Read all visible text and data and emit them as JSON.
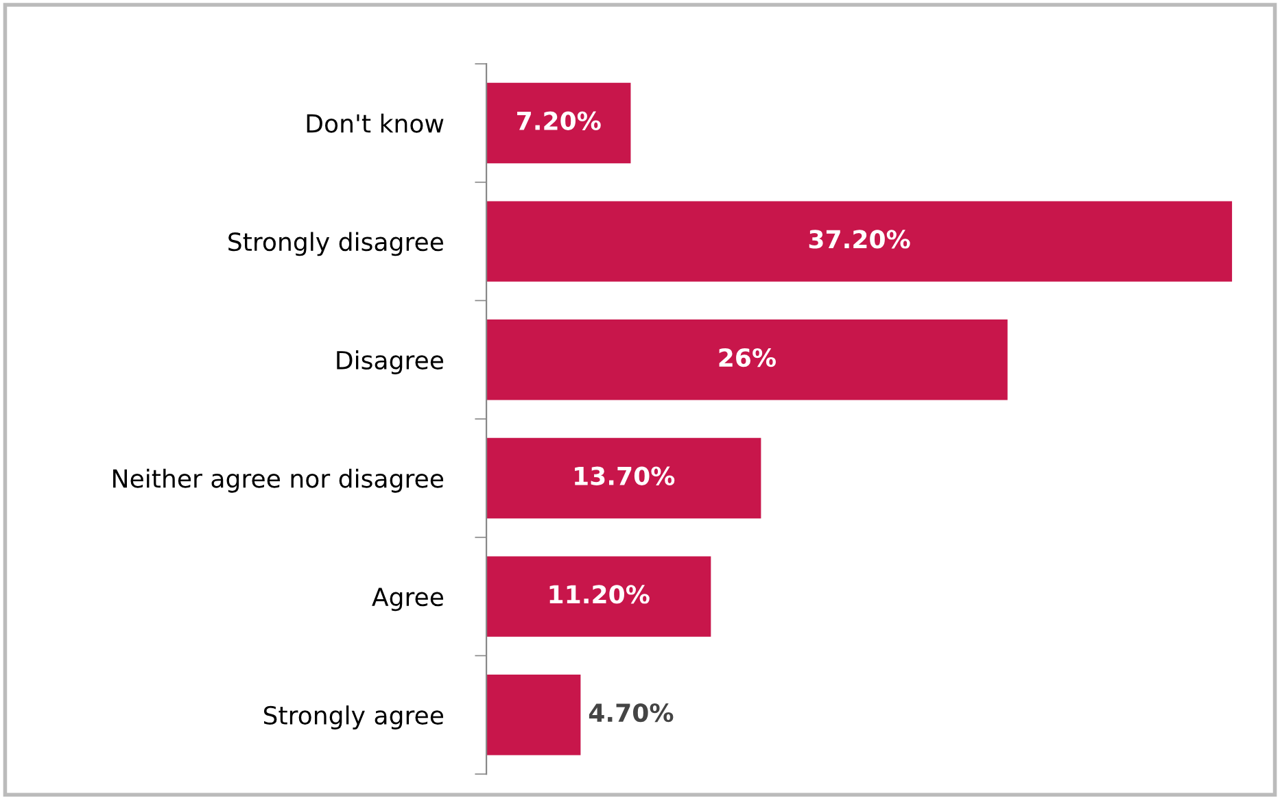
{
  "chart_data": {
    "type": "bar",
    "orientation": "horizontal",
    "categories": [
      "Don't know",
      "Strongly disagree",
      "Disagree",
      "Neither agree nor disagree",
      "Agree",
      "Strongly agree"
    ],
    "values": [
      7.2,
      37.2,
      26,
      13.7,
      11.2,
      4.7
    ],
    "value_labels": [
      "7.20%",
      "37.20%",
      "26%",
      "13.70%",
      "11.20%",
      "4.70%"
    ],
    "color": "#c8164b",
    "grid": false,
    "legend": false
  }
}
